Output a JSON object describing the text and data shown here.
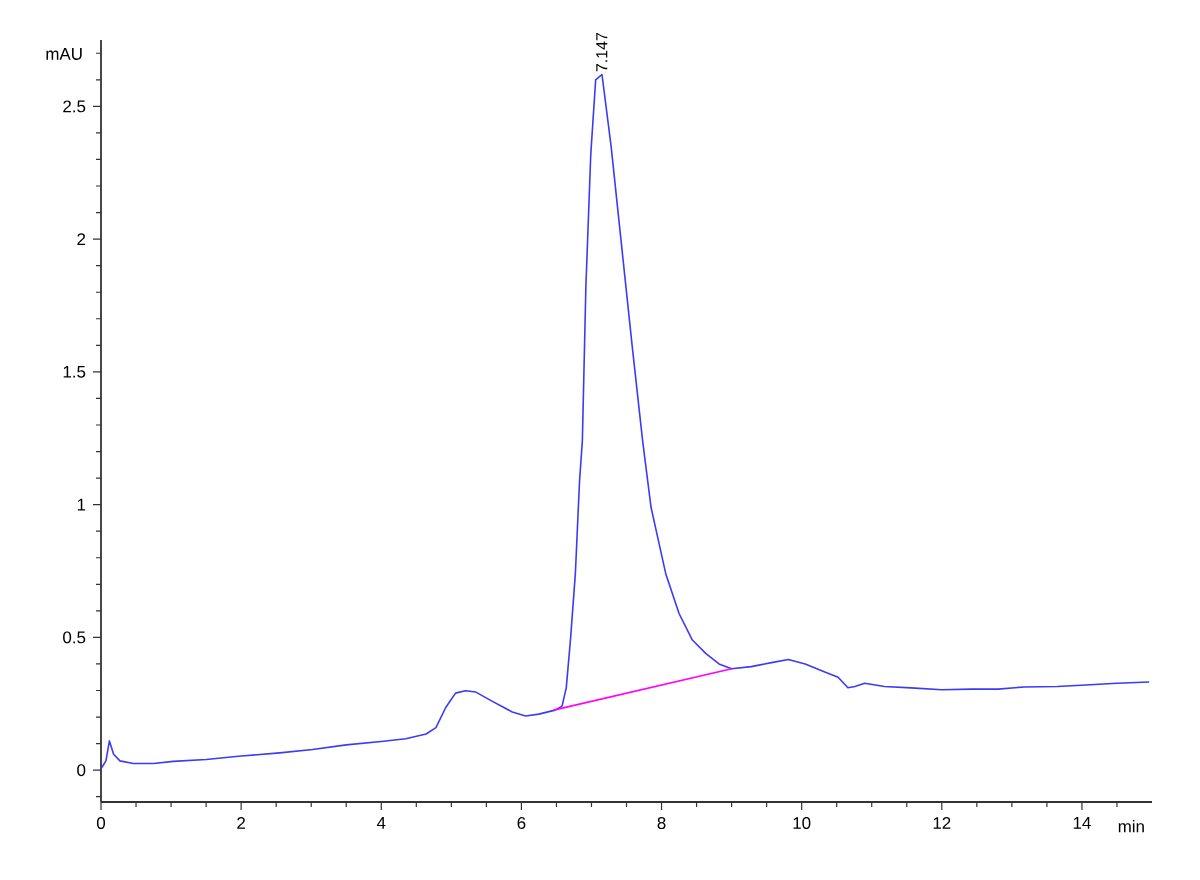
{
  "chart_data": {
    "type": "line",
    "xlabel": "min",
    "ylabel": "mAU",
    "annotations": [
      {
        "text": "7.147",
        "x": 7.147,
        "y": 2.62
      }
    ],
    "xlim": [
      0,
      15
    ],
    "ylim": [
      -0.12,
      2.75
    ],
    "xticks": [
      0,
      {
        "value": 0.5,
        "label": null
      },
      {
        "value": 1,
        "label": null
      },
      {
        "value": 1.5,
        "label": null
      },
      2,
      {
        "value": 2.5,
        "label": null
      },
      {
        "value": 3,
        "label": null
      },
      {
        "value": 3.5,
        "label": null
      },
      4,
      {
        "value": 4.5,
        "label": null
      },
      {
        "value": 5,
        "label": null
      },
      {
        "value": 5.5,
        "label": null
      },
      6,
      {
        "value": 6.5,
        "label": null
      },
      {
        "value": 7,
        "label": null
      },
      {
        "value": 7.5,
        "label": null
      },
      8,
      {
        "value": 8.5,
        "label": null
      },
      {
        "value": 9,
        "label": null
      },
      {
        "value": 9.5,
        "label": null
      },
      10,
      {
        "value": 10.5,
        "label": null
      },
      {
        "value": 11,
        "label": null
      },
      {
        "value": 11.5,
        "label": null
      },
      12,
      {
        "value": 12.5,
        "label": null
      },
      {
        "value": 13,
        "label": null
      },
      {
        "value": 13.5,
        "label": null
      },
      14,
      {
        "value": 14.5,
        "label": null
      }
    ],
    "yticks": [
      {
        "value": -0.1,
        "label": null
      },
      0,
      {
        "value": 0.1,
        "label": null
      },
      {
        "value": 0.2,
        "label": null
      },
      {
        "value": 0.3,
        "label": null
      },
      {
        "value": 0.4,
        "label": null
      },
      0.5,
      {
        "value": 0.6,
        "label": null
      },
      {
        "value": 0.7,
        "label": null
      },
      {
        "value": 0.8,
        "label": null
      },
      {
        "value": 0.9,
        "label": null
      },
      1,
      {
        "value": 1.1,
        "label": null
      },
      {
        "value": 1.2,
        "label": null
      },
      {
        "value": 1.3,
        "label": null
      },
      {
        "value": 1.4,
        "label": null
      },
      1.5,
      {
        "value": 1.6,
        "label": null
      },
      {
        "value": 1.7,
        "label": null
      },
      {
        "value": 1.8,
        "label": null
      },
      {
        "value": 1.9,
        "label": null
      },
      2,
      {
        "value": 2.1,
        "label": null
      },
      {
        "value": 2.2,
        "label": null
      },
      {
        "value": 2.3,
        "label": null
      },
      {
        "value": 2.4,
        "label": null
      },
      2.5,
      {
        "value": 2.6,
        "label": null
      },
      {
        "value": 2.7,
        "label": null
      }
    ],
    "series": [
      {
        "color": "#3b3bf5",
        "x": [
          0,
          0.07,
          0.12,
          0.18,
          0.27,
          0.46,
          0.75,
          1.03,
          1.5,
          2.0,
          2.55,
          3.02,
          3.5,
          4.0,
          4.35,
          4.64,
          4.78,
          4.92,
          5.06,
          5.2,
          5.35,
          5.58,
          5.87,
          6.06,
          6.25,
          6.48,
          6.58,
          6.64,
          6.7,
          6.77,
          6.83,
          6.87,
          6.92,
          6.99,
          7.06,
          7.15,
          7.28,
          7.42,
          7.58,
          7.73,
          7.85,
          8.06,
          8.25,
          8.44,
          8.63,
          8.82,
          9.0,
          9.28,
          9.57,
          9.81,
          10.05,
          10.33,
          10.52,
          10.66,
          10.76,
          10.9,
          11.18,
          11.56,
          12.0,
          12.42,
          12.8,
          13.17,
          13.65,
          13.99,
          14.5,
          14.96
        ],
        "values": [
          0.005,
          0.035,
          0.11,
          0.06,
          0.035,
          0.025,
          0.025,
          0.033,
          0.04,
          0.053,
          0.065,
          0.078,
          0.095,
          0.108,
          0.118,
          0.136,
          0.16,
          0.236,
          0.29,
          0.299,
          0.294,
          0.26,
          0.219,
          0.204,
          0.211,
          0.226,
          0.241,
          0.31,
          0.49,
          0.74,
          1.09,
          1.24,
          1.82,
          2.32,
          2.6,
          2.62,
          2.35,
          2.0,
          1.6,
          1.24,
          0.99,
          0.74,
          0.59,
          0.49,
          0.44,
          0.4,
          0.382,
          0.39,
          0.405,
          0.417,
          0.4,
          0.37,
          0.35,
          0.31,
          0.315,
          0.327,
          0.315,
          0.31,
          0.303,
          0.305,
          0.305,
          0.313,
          0.315,
          0.32,
          0.327,
          0.332
        ]
      },
      {
        "color": "#ff00ff",
        "x": [
          6.46,
          9.0
        ],
        "values": [
          0.226,
          0.382
        ]
      }
    ],
    "marker": "none",
    "line_style": "solid"
  }
}
